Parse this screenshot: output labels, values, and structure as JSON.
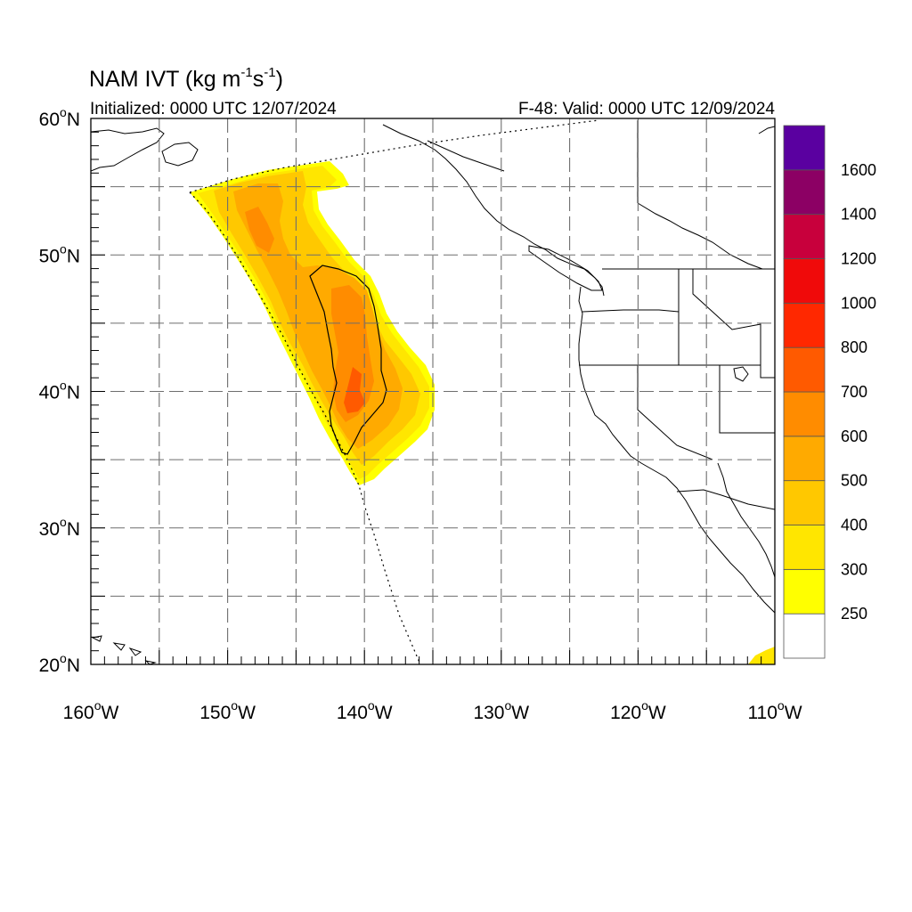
{
  "title": {
    "main": "NAM IVT (kg m",
    "unit_sup1": "-1",
    "unit_mid": "s",
    "unit_sup2": "-1",
    "unit_end": ")"
  },
  "initialized_text": "Initialized: 0000 UTC 12/07/2024",
  "valid_text": "F-48: Valid: 0000 UTC 12/09/2024",
  "lat_labels": [
    "60",
    "50",
    "40",
    "30",
    "20"
  ],
  "lat_suffix": "N",
  "lon_labels": [
    "160",
    "150",
    "140",
    "130",
    "120",
    "110"
  ],
  "lon_suffix": "W",
  "degree_symbol": "o",
  "map_extent": {
    "lon_min": -160,
    "lon_max": -110,
    "lat_min": 20,
    "lat_max": 60
  },
  "colorbar": {
    "labels": [
      "250",
      "300",
      "400",
      "500",
      "600",
      "700",
      "800",
      "1000",
      "1200",
      "1400",
      "1600"
    ],
    "colors_bottom_to_top": [
      "#ffffff",
      "#ffff00",
      "#ffe600",
      "#ffc800",
      "#ffaa00",
      "#ff8c00",
      "#ff5a00",
      "#ff2800",
      "#f00a0a",
      "#c8003c",
      "#8c0064",
      "#5a00a0"
    ]
  },
  "field_colors": {
    "level_250": "#ffff00",
    "level_300": "#ffe600",
    "level_400": "#ffc800",
    "level_500": "#ffaa00",
    "level_600": "#ff8c00",
    "level_700": "#ff5a00"
  },
  "contour_level": "500"
}
